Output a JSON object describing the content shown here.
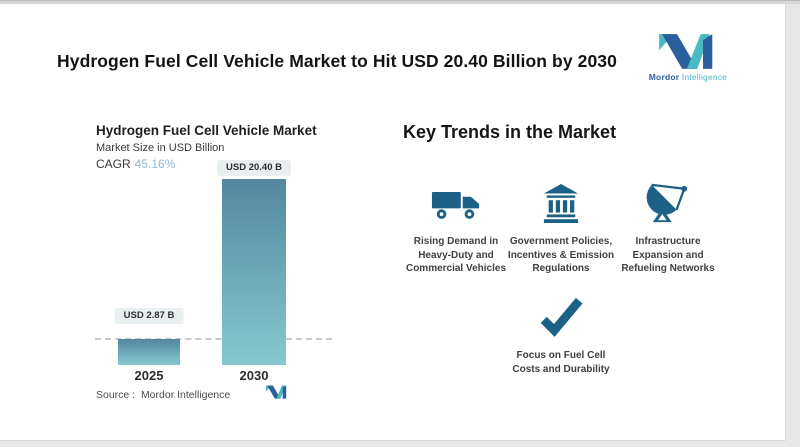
{
  "theme": {
    "accent_icon_color": "#1e6186",
    "bar_gradient_top": "#54879e",
    "bar_gradient_bottom": "#85c9d0",
    "cagr_value_color": "#8fb9d4",
    "value_chip_bg": "#e9eef1",
    "brand_blue": "#2b5f9c",
    "brand_teal": "#49b9c4"
  },
  "header": {
    "title": "Hydrogen Fuel Cell Vehicle Market to Hit USD 20.40 Billion by 2030",
    "brand_primary": "Mordor",
    "brand_secondary": "Intelligence"
  },
  "chart": {
    "title": "Hydrogen Fuel Cell Vehicle Market",
    "subtitle": "Market Size in USD Billion",
    "cagr_label": "CAGR",
    "cagr_value": "45.16%",
    "source": "Source :  Mordor Intelligence"
  },
  "chart_data": {
    "type": "bar",
    "categories": [
      "2025",
      "2030"
    ],
    "values": [
      2.87,
      20.4
    ],
    "bar_labels": [
      "USD 2.87 B",
      "USD 20.40 B"
    ],
    "title": "Hydrogen Fuel Cell Vehicle Market",
    "ylabel": "Market Size in USD Billion",
    "cagr_pct": 45.16,
    "ylim": [
      0,
      20.4
    ],
    "grid": false,
    "legend": false,
    "annotations": [
      "dashed reference line at 2025 value level"
    ]
  },
  "trends": {
    "heading": "Key Trends in the Market",
    "items": [
      {
        "icon": "truck-icon",
        "label": "Rising Demand in\nHeavy-Duty and\nCommercial Vehicles"
      },
      {
        "icon": "government-building-icon",
        "label": "Government Policies,\nIncentives & Emission\nRegulations"
      },
      {
        "icon": "satellite-dish-icon",
        "label": "Infrastructure\nExpansion and\nRefueling Networks"
      },
      {
        "icon": "checkmark-icon",
        "label": "Focus on Fuel Cell\nCosts and Durability"
      }
    ]
  }
}
